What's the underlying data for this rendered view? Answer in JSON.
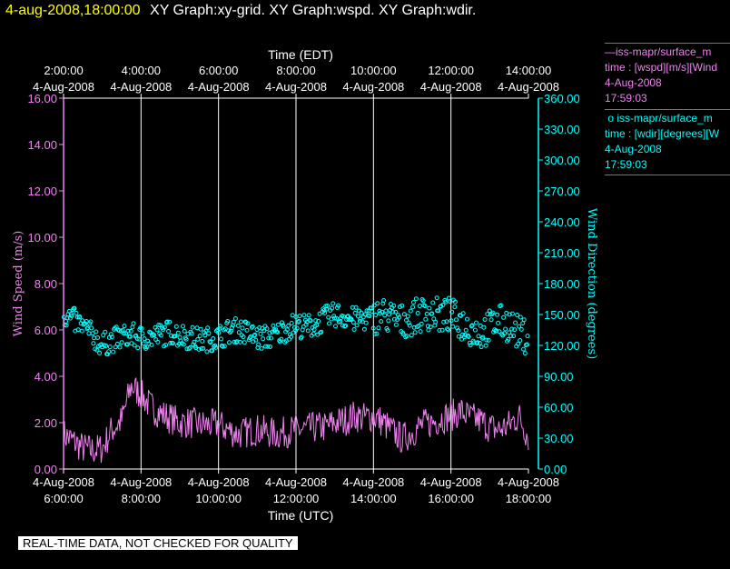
{
  "header": {
    "date_time": "4-aug-2008,18:00:00",
    "graphs": "XY Graph:xy-grid.  XY Graph:wspd.  XY Graph:wdir."
  },
  "legend": {
    "wspd": {
      "series": "iss-mapr/surface_m",
      "var": "time : [wspd][m/s][Wind",
      "date": "4-Aug-2008",
      "time": "17:59:03"
    },
    "wdir": {
      "series": "iss-mapr/surface_m",
      "var": "time : [wdir][degrees][W",
      "date": "4-Aug-2008",
      "time": "17:59:03"
    }
  },
  "disclaimer": "REAL-TIME DATA, NOT CHECKED FOR QUALITY",
  "colors": {
    "wspd": "#ee82ee",
    "wdir": "#00ffff",
    "grid": "#ffffff",
    "axis_text": "#ffffff"
  },
  "chart_data": {
    "type": "line",
    "x_top_title": "Time (EDT)",
    "x_bottom_title": "Time (UTC)",
    "y_left_label": "Wind Speed (m/s)",
    "y_right_label": "Wind Direction (degrees)",
    "x_range_utc_hours": [
      6,
      18
    ],
    "x_ticks_top": [
      {
        "time": "2:00:00",
        "date": "4-Aug-2008"
      },
      {
        "time": "4:00:00",
        "date": "4-Aug-2008"
      },
      {
        "time": "6:00:00",
        "date": "4-Aug-2008"
      },
      {
        "time": "8:00:00",
        "date": "4-Aug-2008"
      },
      {
        "time": "10:00:00",
        "date": "4-Aug-2008"
      },
      {
        "time": "12:00:00",
        "date": "4-Aug-2008"
      },
      {
        "time": "14:00:00",
        "date": "4-Aug-2008"
      }
    ],
    "x_ticks_bottom": [
      {
        "time": "6:00:00",
        "date": "4-Aug-2008"
      },
      {
        "time": "8:00:00",
        "date": "4-Aug-2008"
      },
      {
        "time": "10:00:00",
        "date": "4-Aug-2008"
      },
      {
        "time": "12:00:00",
        "date": "4-Aug-2008"
      },
      {
        "time": "14:00:00",
        "date": "4-Aug-2008"
      },
      {
        "time": "16:00:00",
        "date": "4-Aug-2008"
      },
      {
        "time": "18:00:00",
        "date": "4-Aug-2008"
      }
    ],
    "y_left_ticks": [
      "0.00",
      "2.00",
      "4.00",
      "6.00",
      "8.00",
      "10.00",
      "12.00",
      "14.00",
      "16.00"
    ],
    "y_left_range": [
      0,
      16
    ],
    "y_right_ticks": [
      "0.00",
      "30.00",
      "60.00",
      "90.00",
      "120.00",
      "150.00",
      "180.00",
      "210.00",
      "240.00",
      "270.00",
      "300.00",
      "330.00",
      "360.00"
    ],
    "y_right_range": [
      0,
      360
    ],
    "grid": "vertical",
    "series": [
      {
        "name": "iss-mapr/surface_m wspd",
        "axis": "left",
        "style": "line",
        "x_utc_hours": [
          6.0,
          6.25,
          6.5,
          6.75,
          7.0,
          7.25,
          7.5,
          7.75,
          8.0,
          8.25,
          8.5,
          8.75,
          9.0,
          9.25,
          9.5,
          9.75,
          10.0,
          10.25,
          10.5,
          10.75,
          11.0,
          11.25,
          11.5,
          11.75,
          12.0,
          12.25,
          12.5,
          12.75,
          13.0,
          13.25,
          13.5,
          13.75,
          14.0,
          14.25,
          14.5,
          14.75,
          15.0,
          15.25,
          15.5,
          15.75,
          16.0,
          16.25,
          16.5,
          16.75,
          17.0,
          17.25,
          17.5,
          17.75,
          18.0
        ],
        "values": [
          1.5,
          1.2,
          0.9,
          0.8,
          0.9,
          1.7,
          2.1,
          3.6,
          3.2,
          2.7,
          2.4,
          2.2,
          2.0,
          2.0,
          1.9,
          1.9,
          1.9,
          1.7,
          1.5,
          1.6,
          1.7,
          1.6,
          1.5,
          1.6,
          1.7,
          1.7,
          1.8,
          1.8,
          2.0,
          2.1,
          2.3,
          2.2,
          2.3,
          2.0,
          1.6,
          1.3,
          1.6,
          1.9,
          2.0,
          2.2,
          2.3,
          2.5,
          2.2,
          2.1,
          1.8,
          1.7,
          1.9,
          2.3,
          1.4
        ]
      },
      {
        "name": "iss-mapr/surface_m wdir",
        "axis": "right",
        "style": "circles",
        "x_utc_hours": [
          6.0,
          6.25,
          6.5,
          6.75,
          7.0,
          7.25,
          7.5,
          7.75,
          8.0,
          8.25,
          8.5,
          8.75,
          9.0,
          9.25,
          9.5,
          9.75,
          10.0,
          10.25,
          10.5,
          10.75,
          11.0,
          11.25,
          11.5,
          11.75,
          12.0,
          12.25,
          12.5,
          12.75,
          13.0,
          13.25,
          13.5,
          13.75,
          14.0,
          14.25,
          14.5,
          14.75,
          15.0,
          15.25,
          15.5,
          15.75,
          16.0,
          16.25,
          16.5,
          16.75,
          17.0,
          17.25,
          17.5,
          17.75,
          18.0
        ],
        "values": [
          150,
          145,
          138,
          130,
          120,
          125,
          128,
          130,
          127,
          128,
          130,
          133,
          130,
          128,
          125,
          126,
          128,
          133,
          135,
          132,
          127,
          128,
          130,
          136,
          140,
          138,
          140,
          146,
          150,
          148,
          145,
          146,
          147,
          150,
          146,
          143,
          147,
          150,
          152,
          148,
          150,
          142,
          136,
          132,
          138,
          143,
          140,
          132,
          128
        ]
      }
    ]
  }
}
